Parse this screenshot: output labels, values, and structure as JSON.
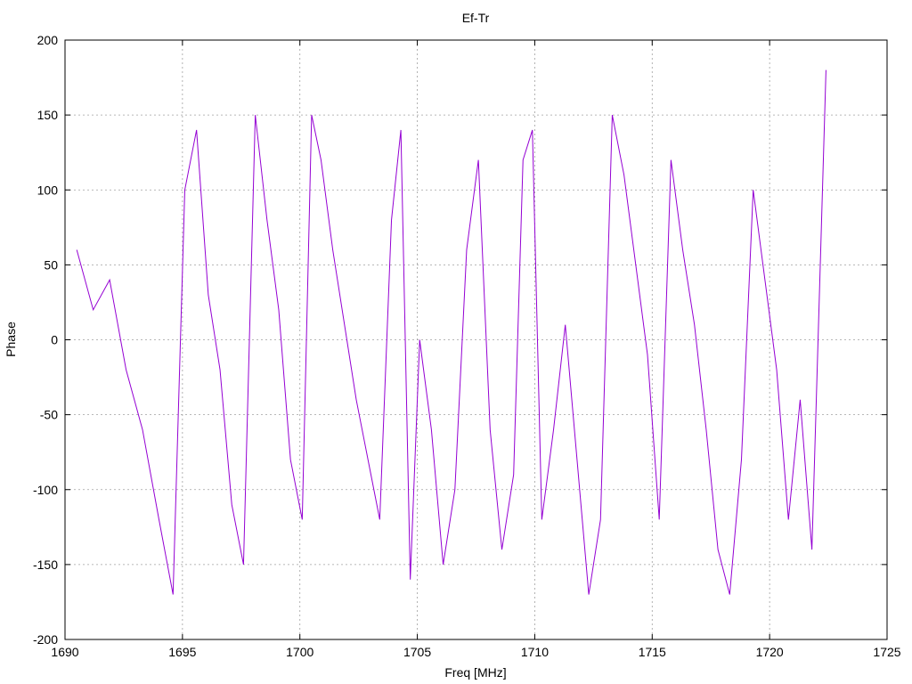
{
  "chart_data": {
    "type": "line",
    "title": "Ef-Tr",
    "xlabel": "Freq [MHz]",
    "ylabel": "Phase",
    "xlim": [
      1690,
      1725
    ],
    "ylim": [
      -200,
      200
    ],
    "xticks": [
      1690,
      1695,
      1700,
      1705,
      1710,
      1715,
      1720,
      1725
    ],
    "yticks": [
      -200,
      -150,
      -100,
      -50,
      0,
      50,
      100,
      150,
      200
    ],
    "grid": true,
    "legend": "none",
    "series": [
      {
        "color": "#9400d3",
        "x": [
          1690.5,
          1691.2,
          1691.9,
          1692.6,
          1693.3,
          1694.0,
          1694.6,
          1695.1,
          1695.6,
          1696.1,
          1696.6,
          1697.1,
          1697.6,
          1698.1,
          1698.6,
          1699.1,
          1699.6,
          1700.1,
          1700.5,
          1700.9,
          1701.4,
          1701.9,
          1702.4,
          1702.9,
          1703.4,
          1703.9,
          1704.3,
          1704.7,
          1705.1,
          1705.6,
          1706.1,
          1706.6,
          1707.1,
          1707.6,
          1708.1,
          1708.6,
          1709.1,
          1709.5,
          1709.9,
          1710.3,
          1710.8,
          1711.3,
          1711.8,
          1712.3,
          1712.8,
          1713.3,
          1713.8,
          1714.3,
          1714.8,
          1715.3,
          1715.8,
          1716.3,
          1716.8,
          1717.3,
          1717.8,
          1718.3,
          1718.8,
          1719.3,
          1719.8,
          1720.3,
          1720.8,
          1721.3,
          1721.8,
          1722.4
        ],
        "y": [
          60,
          20,
          40,
          -20,
          -60,
          -120,
          -170,
          100,
          140,
          30,
          -20,
          -110,
          -150,
          150,
          80,
          20,
          -80,
          -120,
          150,
          120,
          60,
          10,
          -40,
          -80,
          -120,
          80,
          140,
          -160,
          0,
          -60,
          -150,
          -100,
          60,
          120,
          -60,
          -140,
          -90,
          120,
          140,
          -120,
          -60,
          10,
          -80,
          -170,
          -120,
          150,
          110,
          50,
          -10,
          -120,
          120,
          60,
          10,
          -60,
          -140,
          -170,
          -80,
          100,
          40,
          -20,
          -120,
          -40,
          -140,
          180
        ]
      }
    ]
  }
}
